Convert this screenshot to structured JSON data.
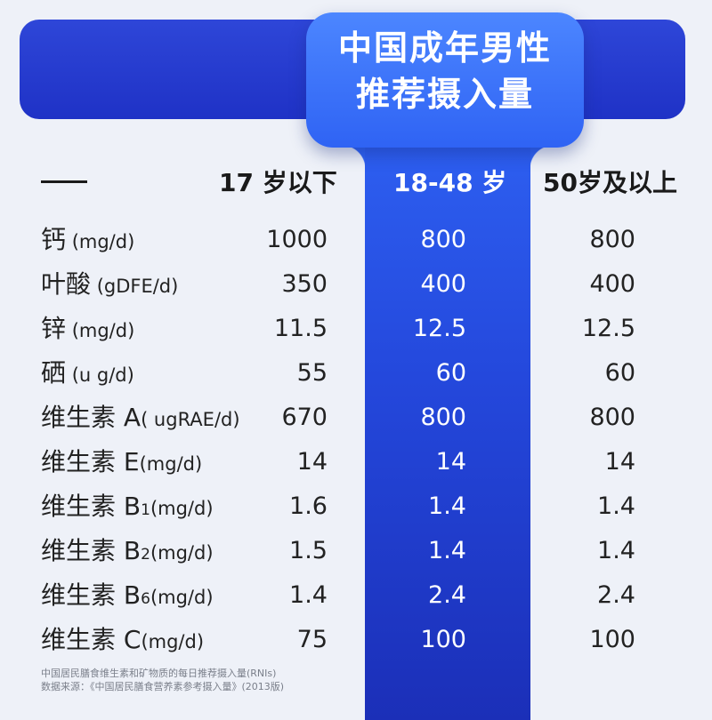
{
  "title": {
    "line1": "中国成年男性",
    "line2": "推荐摄入量"
  },
  "header": {
    "dash": "——",
    "col1": "17 岁以下",
    "col2": "18-48 岁",
    "col3": "50岁及以上"
  },
  "rows": [
    {
      "name": "钙",
      "unit": " (mg/d)",
      "sub": "",
      "unit_after": "",
      "v1": "1000",
      "v2": "800",
      "v3": "800"
    },
    {
      "name": "叶酸",
      "unit": " (gDFE/d)",
      "sub": "",
      "unit_after": "",
      "v1": "350",
      "v2": "400",
      "v3": "400"
    },
    {
      "name": "锌",
      "unit": " (mg/d)",
      "sub": "",
      "unit_after": "",
      "v1": "11.5",
      "v2": "12.5",
      "v3": "12.5"
    },
    {
      "name": "硒",
      "unit": " (u g/d)",
      "sub": "",
      "unit_after": "",
      "v1": "55",
      "v2": "60",
      "v3": "60"
    },
    {
      "name": "维生素 A",
      "unit": "( ugRAE/d)",
      "sub": "",
      "unit_after": "",
      "v1": "670",
      "v2": "800",
      "v3": "800"
    },
    {
      "name": "维生素 E",
      "unit": "(mg/d)",
      "sub": "",
      "unit_after": "",
      "v1": "14",
      "v2": "14",
      "v3": "14"
    },
    {
      "name": "维生素 B",
      "unit": "",
      "sub": "1",
      "unit_after": "(mg/d)",
      "v1": "1.6",
      "v2": "1.4",
      "v3": "1.4"
    },
    {
      "name": "维生素 B",
      "unit": "",
      "sub": "2",
      "unit_after": "(mg/d)",
      "v1": "1.5",
      "v2": "1.4",
      "v3": "1.4"
    },
    {
      "name": "维生素 B",
      "unit": "",
      "sub": "6",
      "unit_after": "(mg/d)",
      "v1": "1.4",
      "v2": "2.4",
      "v3": "2.4"
    },
    {
      "name": "维生素 C",
      "unit": "(mg/d)",
      "sub": "",
      "unit_after": "",
      "v1": "75",
      "v2": "100",
      "v3": "100"
    }
  ],
  "footnote": {
    "line1": "中国居民膳食维生素和矿物质的每日推荐摄入量(RNIs)",
    "line2": "数据来源：《中国居民膳食营养素参考摄入量》(2013版)"
  },
  "colors": {
    "banner": "#2e46d8",
    "highlight": "#2f63f4",
    "background": "#eef1f8"
  }
}
